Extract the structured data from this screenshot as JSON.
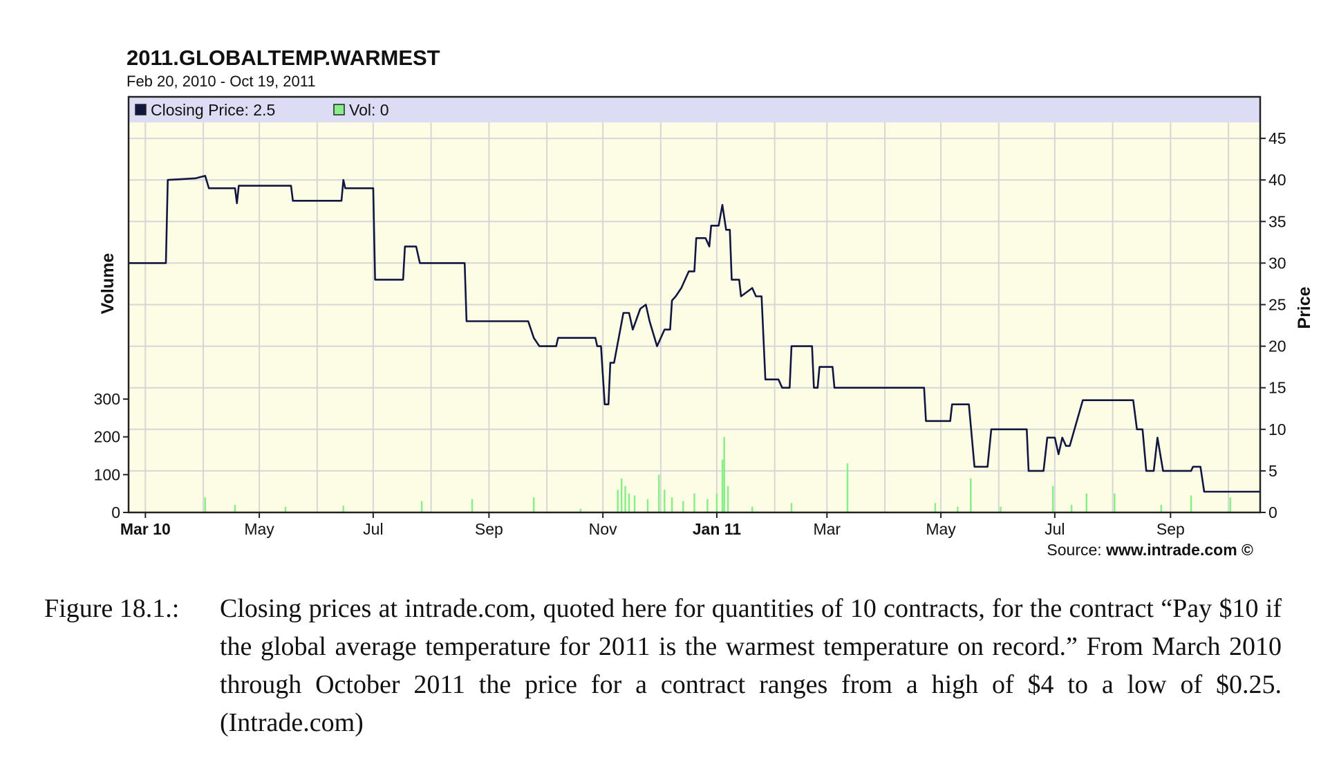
{
  "chart_data": {
    "type": "line",
    "title": "2011.GLOBALTEMP.WARMEST",
    "subtitle": "Feb 20, 2010 - Oct 19, 2011",
    "legend": [
      {
        "label": "Closing Price: 2.5",
        "color": "#101640"
      },
      {
        "label": "Vol: 0",
        "color": "#88ee88"
      }
    ],
    "legend_position": "top-left",
    "ylabel_left": "Volume",
    "ylabel_right": "Price",
    "source_label": "Source:",
    "source_site": "www.intrade.com ©",
    "grid": true,
    "x_ticks": [
      {
        "date": "2010-03-01",
        "label": "Mar 10",
        "bold": true
      },
      {
        "date": "2010-05-01",
        "label": "May",
        "bold": false
      },
      {
        "date": "2010-07-01",
        "label": "Jul",
        "bold": false
      },
      {
        "date": "2010-09-01",
        "label": "Sep",
        "bold": false
      },
      {
        "date": "2010-11-01",
        "label": "Nov",
        "bold": false
      },
      {
        "date": "2011-01-01",
        "label": "Jan 11",
        "bold": true
      },
      {
        "date": "2011-03-01",
        "label": "Mar",
        "bold": false
      },
      {
        "date": "2011-05-01",
        "label": "May",
        "bold": false
      },
      {
        "date": "2011-07-01",
        "label": "Jul",
        "bold": false
      },
      {
        "date": "2011-09-01",
        "label": "Sep",
        "bold": false
      }
    ],
    "xlim": [
      "2010-02-20",
      "2011-10-19"
    ],
    "price_ylim": [
      0,
      50
    ],
    "price_ticks": [
      0,
      5,
      10,
      15,
      20,
      25,
      30,
      35,
      40,
      45
    ],
    "volume_ylim": [
      0,
      1100
    ],
    "volume_ticks": [
      0,
      100,
      200,
      300
    ],
    "price_series": {
      "name": "Closing Price",
      "color": "#101640",
      "points": [
        [
          "2010-02-20",
          30
        ],
        [
          "2010-03-12",
          30
        ],
        [
          "2010-03-13",
          40
        ],
        [
          "2010-03-28",
          40.2
        ],
        [
          "2010-04-02",
          40.5
        ],
        [
          "2010-04-04",
          39
        ],
        [
          "2010-04-18",
          39
        ],
        [
          "2010-04-19",
          37.2
        ],
        [
          "2010-04-20",
          39.3
        ],
        [
          "2010-05-18",
          39.3
        ],
        [
          "2010-05-19",
          37.5
        ],
        [
          "2010-06-14",
          37.5
        ],
        [
          "2010-06-15",
          40
        ],
        [
          "2010-06-16",
          39
        ],
        [
          "2010-07-01",
          39
        ],
        [
          "2010-07-02",
          28
        ],
        [
          "2010-07-17",
          28
        ],
        [
          "2010-07-18",
          32
        ],
        [
          "2010-07-24",
          32
        ],
        [
          "2010-07-26",
          30
        ],
        [
          "2010-08-19",
          30
        ],
        [
          "2010-08-20",
          23
        ],
        [
          "2010-09-22",
          23
        ],
        [
          "2010-09-25",
          21
        ],
        [
          "2010-09-28",
          20
        ],
        [
          "2010-10-07",
          20
        ],
        [
          "2010-10-08",
          21
        ],
        [
          "2010-10-28",
          21
        ],
        [
          "2010-10-29",
          20
        ],
        [
          "2010-10-31",
          20
        ],
        [
          "2010-11-02",
          13
        ],
        [
          "2010-11-04",
          13
        ],
        [
          "2010-11-05",
          18
        ],
        [
          "2010-11-07",
          18
        ],
        [
          "2010-11-12",
          24
        ],
        [
          "2010-11-15",
          24
        ],
        [
          "2010-11-17",
          22
        ],
        [
          "2010-11-21",
          24.5
        ],
        [
          "2010-11-24",
          25
        ],
        [
          "2010-11-26",
          23
        ],
        [
          "2010-11-30",
          20
        ],
        [
          "2010-12-04",
          22
        ],
        [
          "2010-12-07",
          22
        ],
        [
          "2010-12-08",
          25.5
        ],
        [
          "2010-12-10",
          26
        ],
        [
          "2010-12-13",
          27
        ],
        [
          "2010-12-17",
          29
        ],
        [
          "2010-12-20",
          29
        ],
        [
          "2010-12-21",
          33
        ],
        [
          "2010-12-26",
          33
        ],
        [
          "2010-12-28",
          32
        ],
        [
          "2010-12-29",
          34.5
        ],
        [
          "2011-01-02",
          34.5
        ],
        [
          "2011-01-04",
          37
        ],
        [
          "2011-01-06",
          34
        ],
        [
          "2011-01-08",
          34
        ],
        [
          "2011-01-09",
          28
        ],
        [
          "2011-01-13",
          28
        ],
        [
          "2011-01-14",
          26
        ],
        [
          "2011-01-20",
          27
        ],
        [
          "2011-01-22",
          26
        ],
        [
          "2011-01-25",
          26
        ],
        [
          "2011-01-27",
          16
        ],
        [
          "2011-02-03",
          16
        ],
        [
          "2011-02-05",
          15
        ],
        [
          "2011-02-09",
          15
        ],
        [
          "2011-02-10",
          20
        ],
        [
          "2011-02-21",
          20
        ],
        [
          "2011-02-22",
          15
        ],
        [
          "2011-02-24",
          15
        ],
        [
          "2011-02-25",
          17.5
        ],
        [
          "2011-03-04",
          17.5
        ],
        [
          "2011-03-05",
          15
        ],
        [
          "2011-04-22",
          15
        ],
        [
          "2011-04-23",
          11
        ],
        [
          "2011-05-06",
          11
        ],
        [
          "2011-05-07",
          13
        ],
        [
          "2011-05-16",
          13
        ],
        [
          "2011-05-19",
          5.5
        ],
        [
          "2011-05-26",
          5.5
        ],
        [
          "2011-05-28",
          10
        ],
        [
          "2011-06-16",
          10
        ],
        [
          "2011-06-17",
          5
        ],
        [
          "2011-06-25",
          5
        ],
        [
          "2011-06-27",
          9
        ],
        [
          "2011-07-01",
          9
        ],
        [
          "2011-07-03",
          7
        ],
        [
          "2011-07-05",
          9
        ],
        [
          "2011-07-07",
          8
        ],
        [
          "2011-07-09",
          8
        ],
        [
          "2011-07-16",
          13.5
        ],
        [
          "2011-08-12",
          13.5
        ],
        [
          "2011-08-14",
          10
        ],
        [
          "2011-08-17",
          10
        ],
        [
          "2011-08-19",
          5
        ],
        [
          "2011-08-23",
          5
        ],
        [
          "2011-08-25",
          9
        ],
        [
          "2011-08-28",
          5
        ],
        [
          "2011-09-12",
          5
        ],
        [
          "2011-09-13",
          5.5
        ],
        [
          "2011-09-17",
          5.5
        ],
        [
          "2011-09-19",
          2.5
        ],
        [
          "2011-10-19",
          2.5
        ]
      ]
    },
    "volume_series": {
      "name": "Vol",
      "color": "#88ee88",
      "points": [
        [
          "2010-04-02",
          40
        ],
        [
          "2010-04-18",
          20
        ],
        [
          "2010-05-15",
          15
        ],
        [
          "2010-06-15",
          18
        ],
        [
          "2010-07-27",
          30
        ],
        [
          "2010-08-23",
          35
        ],
        [
          "2010-09-25",
          40
        ],
        [
          "2010-10-20",
          10
        ],
        [
          "2010-11-09",
          60
        ],
        [
          "2010-11-11",
          90
        ],
        [
          "2010-11-13",
          70
        ],
        [
          "2010-11-15",
          50
        ],
        [
          "2010-11-18",
          45
        ],
        [
          "2010-11-25",
          35
        ],
        [
          "2010-12-01",
          100
        ],
        [
          "2010-12-04",
          60
        ],
        [
          "2010-12-08",
          40
        ],
        [
          "2010-12-14",
          30
        ],
        [
          "2010-12-20",
          50
        ],
        [
          "2010-12-27",
          35
        ],
        [
          "2011-01-01",
          50
        ],
        [
          "2011-01-04",
          140
        ],
        [
          "2011-01-05",
          200
        ],
        [
          "2011-01-07",
          70
        ],
        [
          "2011-01-20",
          15
        ],
        [
          "2011-02-10",
          25
        ],
        [
          "2011-03-12",
          130
        ],
        [
          "2011-04-28",
          25
        ],
        [
          "2011-05-10",
          15
        ],
        [
          "2011-05-17",
          90
        ],
        [
          "2011-06-02",
          15
        ],
        [
          "2011-06-30",
          70
        ],
        [
          "2011-07-10",
          20
        ],
        [
          "2011-07-18",
          50
        ],
        [
          "2011-08-02",
          50
        ],
        [
          "2011-08-27",
          20
        ],
        [
          "2011-09-12",
          45
        ],
        [
          "2011-10-03",
          40
        ]
      ]
    }
  },
  "caption": {
    "label": "Figure 18.1.:",
    "text": "Closing prices at intrade.com, quoted here for quantities of 10 contracts, for the contract “Pay $10 if the global average temperature for 2011 is the warmest temperature on record.” From March 2010 through October 2011 the price for a contract ranges from a high of $4 to a low of $0.25. (Intrade.com)"
  }
}
